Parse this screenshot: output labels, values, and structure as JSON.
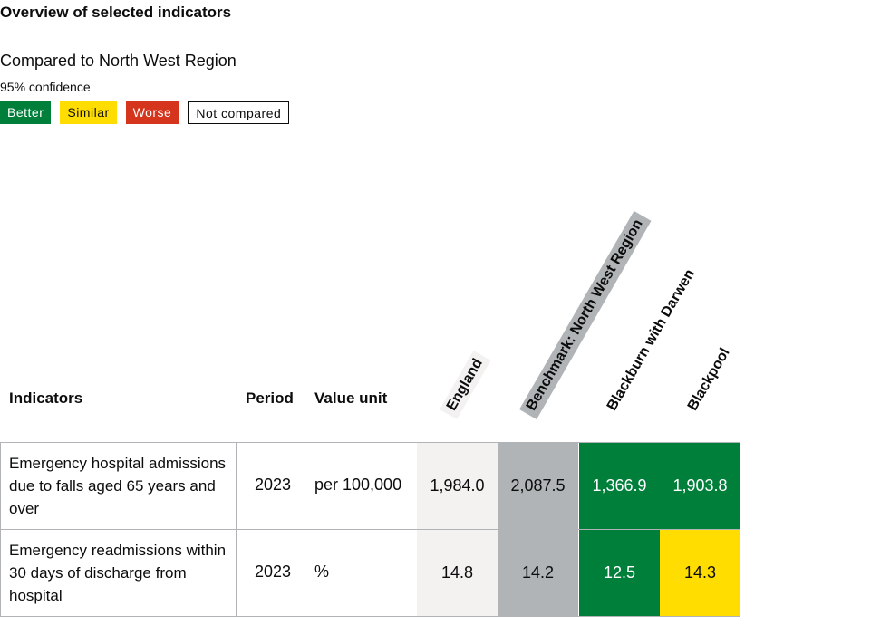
{
  "title": "Overview of selected indicators",
  "compared_to": "Compared to North West Region",
  "confidence": "95% confidence",
  "legend": [
    "Better",
    "Similar",
    "Worse",
    "Not compared"
  ],
  "colors": {
    "better": "#007f3b",
    "similar": "#ffdd00",
    "worse": "#d4351c",
    "england": "#f3f2f1",
    "benchmark": "#b1b4b6"
  },
  "table": {
    "headers": {
      "indicators": "Indicators",
      "period": "Period",
      "value_unit": "Value unit",
      "areas": [
        "England",
        "Benchmark: North West Region",
        "Blackburn with Darwen",
        "Blackpool"
      ]
    },
    "rows": [
      {
        "indicator": "Emergency hospital admissions due to falls aged 65 years and over",
        "period": "2023",
        "unit": "per 100,000",
        "values": [
          "1,984.0",
          "2,087.5",
          "1,366.9",
          "1,903.8"
        ],
        "status": [
          "england",
          "benchmark",
          "better",
          "better"
        ]
      },
      {
        "indicator": "Emergency readmissions within 30 days of discharge from hospital",
        "period": "2023",
        "unit": "%",
        "values": [
          "14.8",
          "14.2",
          "12.5",
          "14.3"
        ],
        "status": [
          "england",
          "benchmark",
          "better",
          "similar"
        ]
      }
    ]
  }
}
